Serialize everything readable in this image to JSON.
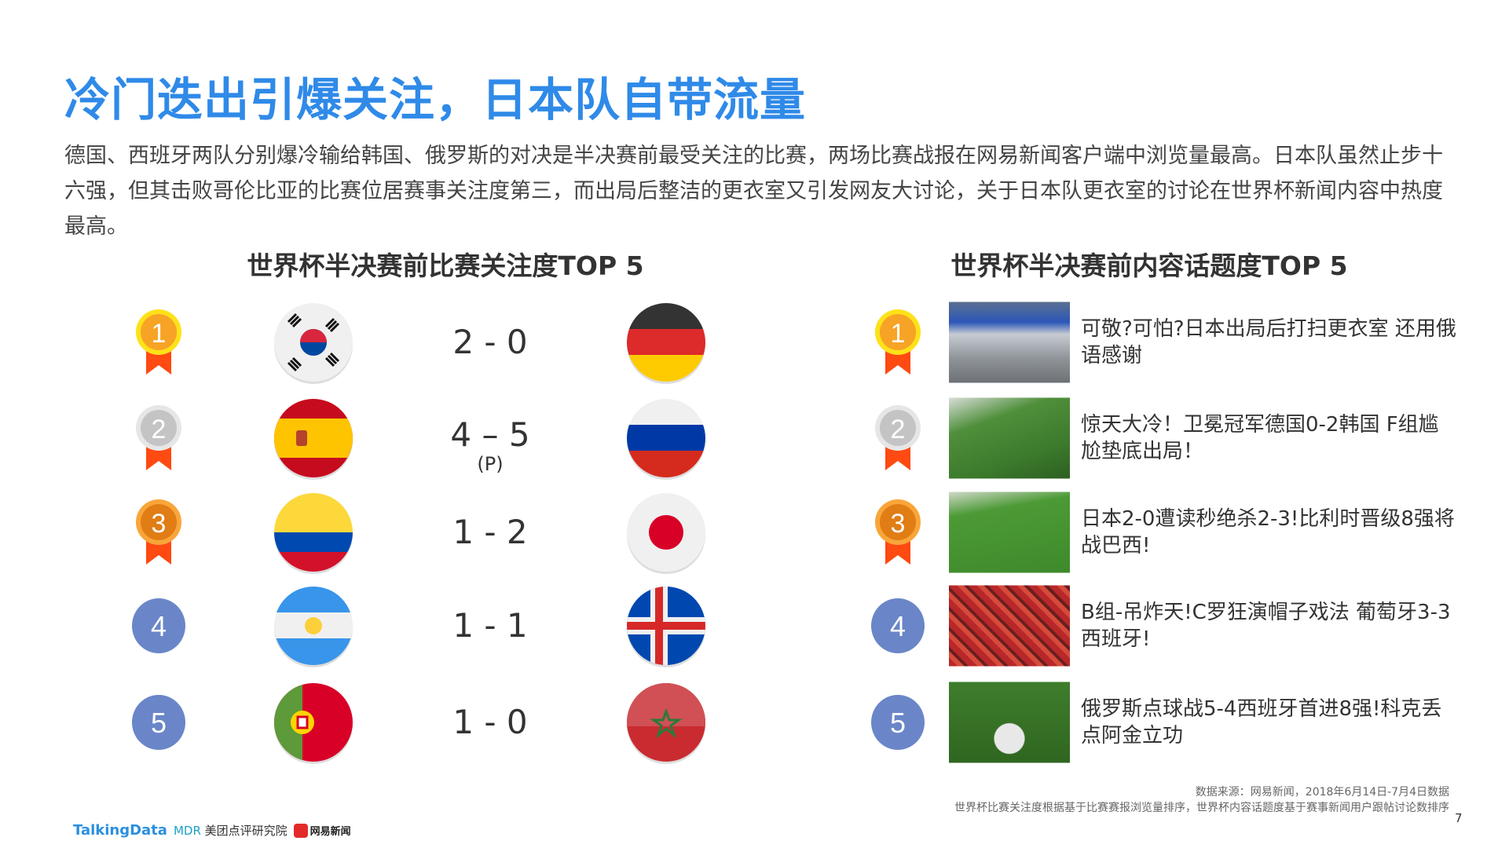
{
  "title": "冷门迭出引爆关注，日本队自带流量",
  "description": "德国、西班牙两队分别爆冷输给韩国、俄罗斯的对决是半决赛前最受关注的比赛，两场比赛战报在网易新闻客户端中浏览量最高。日本队虽然止步十六强，但其击败哥伦比亚的比赛位居赛事关注度第三，而出局后整洁的更衣室又引发网友大讨论，关于日本队更衣室的讨论在世界杯新闻内容中热度最高。",
  "left": {
    "heading": "世界杯半决赛前比赛关注度TOP 5",
    "matches": [
      {
        "rank": "1",
        "medal": "gold",
        "home_flag": "flag-korea",
        "score": "2 - 0",
        "note": "",
        "away_flag": "flag-germany"
      },
      {
        "rank": "2",
        "medal": "silver",
        "home_flag": "flag-spain",
        "score": "4 – 5",
        "note": "(P)",
        "away_flag": "flag-russia"
      },
      {
        "rank": "3",
        "medal": "bronze",
        "home_flag": "flag-colombia",
        "score": "1 - 2",
        "note": "",
        "away_flag": "flag-japan"
      },
      {
        "rank": "4",
        "medal": "plain",
        "home_flag": "flag-argentina",
        "score": "1 - 1",
        "note": "",
        "away_flag": "flag-iceland"
      },
      {
        "rank": "5",
        "medal": "plain",
        "home_flag": "flag-portugal",
        "score": "1 - 0",
        "note": "",
        "away_flag": "flag-morocco"
      }
    ]
  },
  "right": {
    "heading": "世界杯半决赛前内容话题度TOP 5",
    "items": [
      {
        "rank": "1",
        "medal": "gold",
        "image": "locker-room-photo",
        "text": "可敬?可怕?日本出局后打扫更衣室 还用俄语感谢"
      },
      {
        "rank": "2",
        "medal": "silver",
        "image": "goal-photo",
        "text": "惊天大冷！卫冕冠军德国0-2韩国 F组尴尬垫底出局！"
      },
      {
        "rank": "3",
        "medal": "bronze",
        "image": "match-photo",
        "text": "日本2-0遭读秒绝杀2-3!比利时晋级8强将战巴西!"
      },
      {
        "rank": "4",
        "medal": "plain",
        "image": "fans-photo",
        "text": "B组-吊炸天!C罗狂演帽子戏法 葡萄牙3-3西班牙!"
      },
      {
        "rank": "5",
        "medal": "plain",
        "image": "celebration-photo",
        "text": "俄罗斯点球战5-4西班牙首进8强!科克丢点阿金立功"
      }
    ]
  },
  "footer": {
    "source": "数据来源：网易新闻，2018年6月14日-7月4日数据",
    "method": "世界杯比赛关注度根据基于比赛赛报浏览量排序，世界杯内容话题度基于赛事新闻用户跟帖讨论数排序",
    "page_number": "7",
    "logos": {
      "talkingdata": "TalkingData",
      "mdr_mark": "MDR",
      "mdr": "美团点评研究院",
      "netease": "网易新闻"
    }
  },
  "colors": {
    "title": "#2f8ae8",
    "gold": "#f7a325",
    "silver": "#c4c4c4",
    "bronze": "#e07d14",
    "plain": "#6a86c8",
    "ribbon": "#ff4a12"
  }
}
